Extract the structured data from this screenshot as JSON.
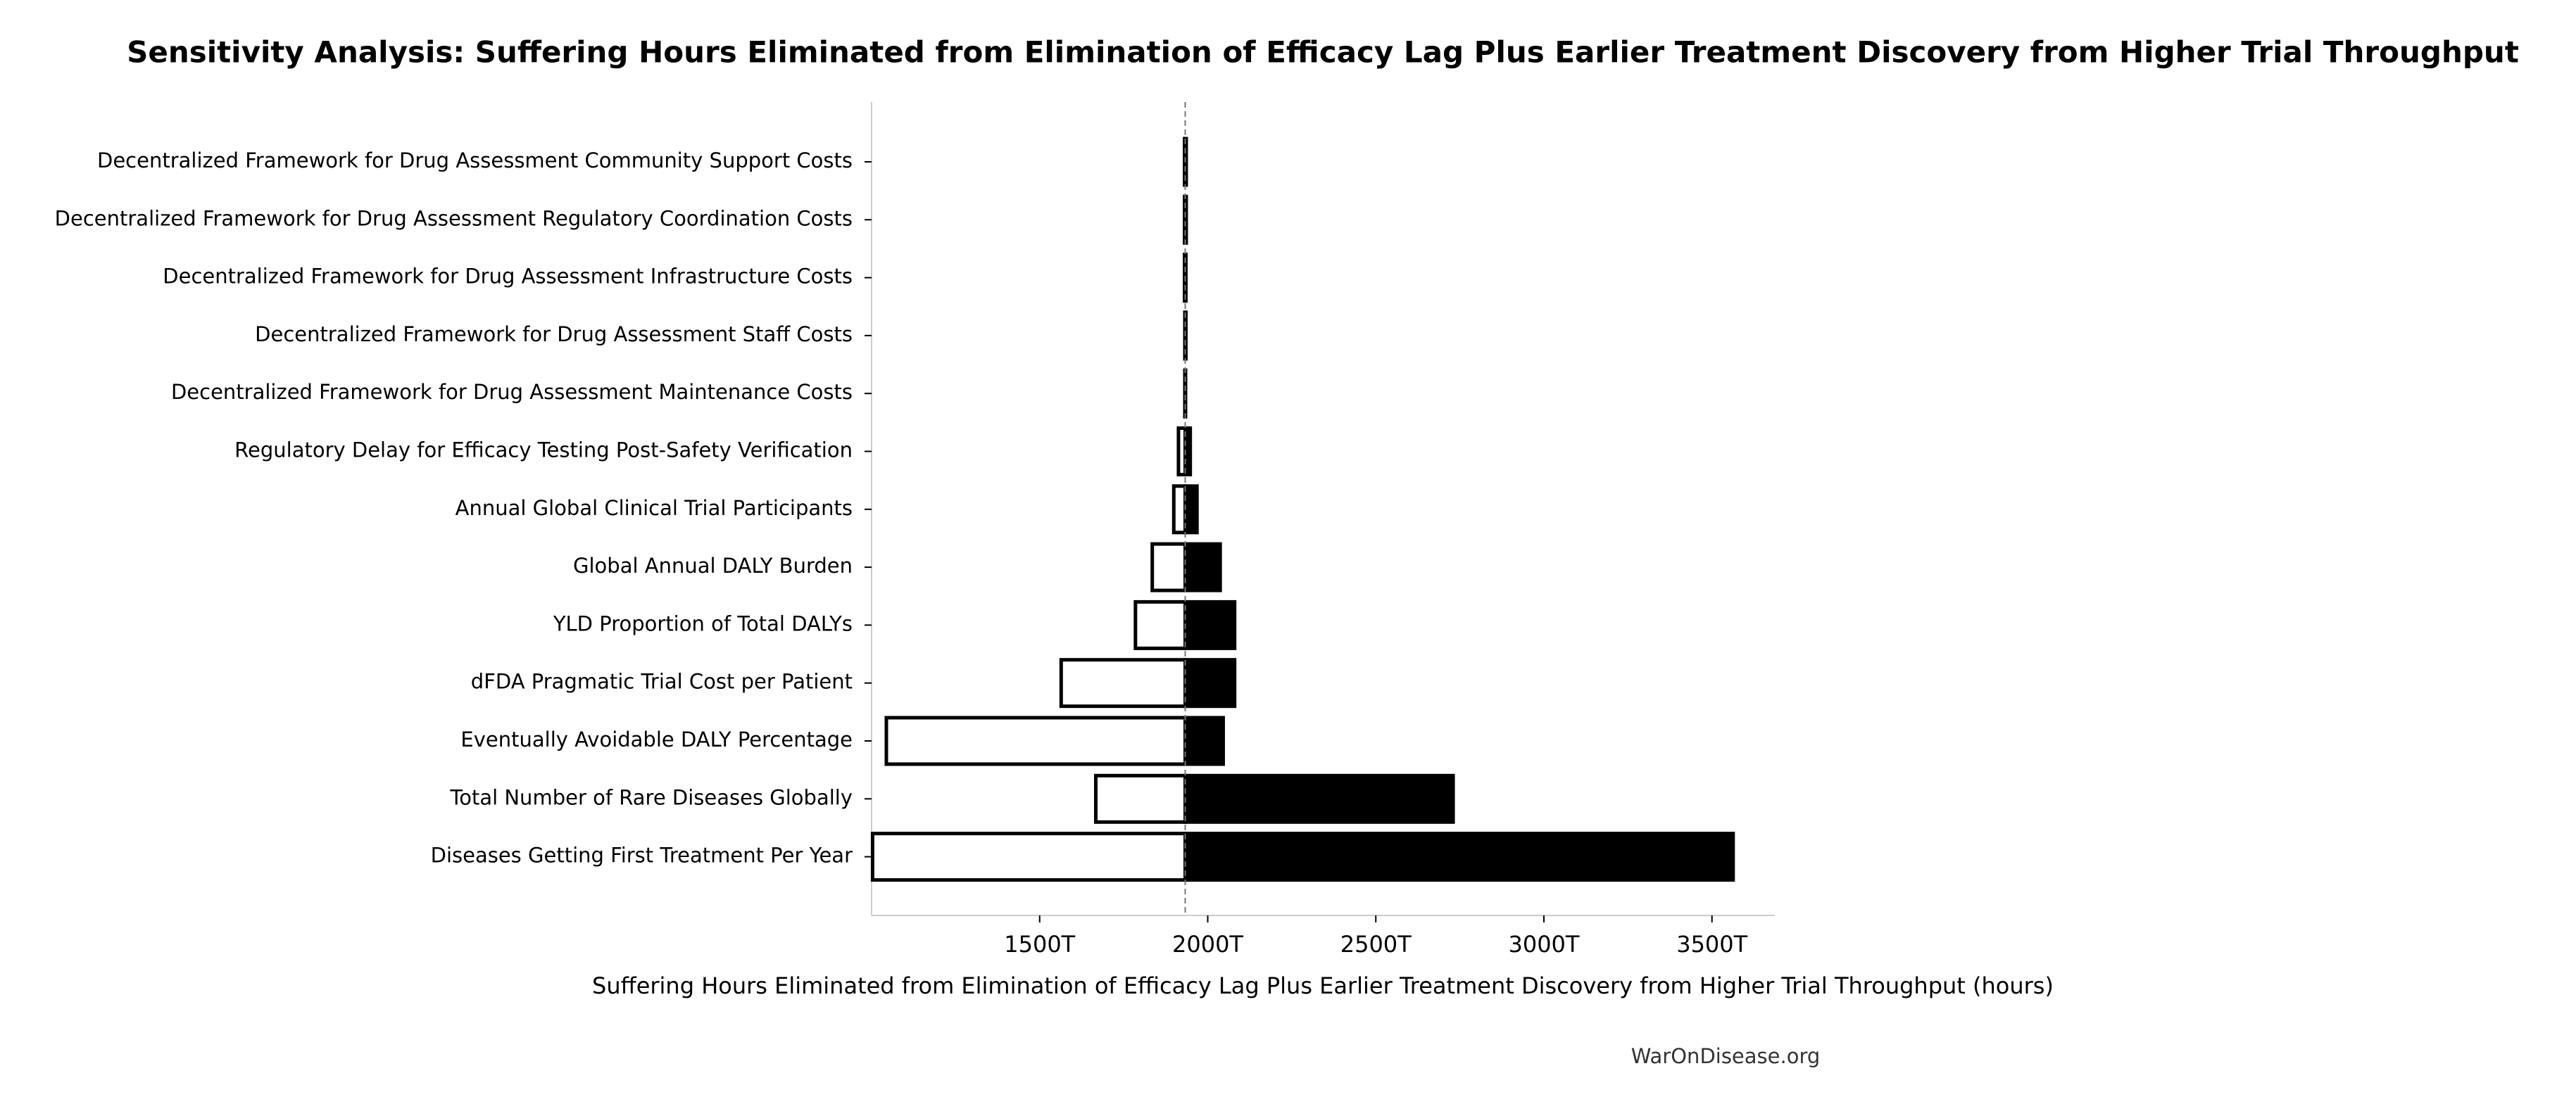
{
  "chart_data": {
    "type": "tornado",
    "title": "Sensitivity Analysis: Suffering Hours Eliminated from Elimination of Efficacy Lag Plus Earlier Treatment Discovery from Higher Trial Throughput",
    "x_label": "Suffering Hours Eliminated from Elimination of Efficacy Lag Plus Earlier Treatment Discovery from Higher Trial Throughput (hours)",
    "footer": "WarOnDisease.org",
    "categories": [
      "Decentralized Framework for Drug Assessment Community Support Costs",
      "Decentralized Framework for Drug Assessment Regulatory Coordination Costs",
      "Decentralized Framework for Drug Assessment Infrastructure Costs",
      "Decentralized Framework for Drug Assessment Staff Costs",
      "Decentralized Framework for Drug Assessment Maintenance Costs",
      "Regulatory Delay for Efficacy Testing Post-Safety Verification",
      "Annual Global Clinical Trial Participants",
      "Global Annual DALY Burden",
      "YLD Proportion of Total DALYs",
      "dFDA Pragmatic Trial Cost per Patient",
      "Eventually Avoidable DALY Percentage",
      "Total Number of Rare Diseases Globally",
      "Diseases Getting First Treatment Per Year"
    ],
    "baseline": 1933,
    "series": [
      {
        "color": "#ffffff",
        "values": [
          1931,
          1931,
          1931,
          1932,
          1932,
          1913,
          1899,
          1835,
          1785,
          1564,
          1044,
          1667,
          1003
        ]
      },
      {
        "color": "#000000",
        "values": [
          1936,
          1936,
          1935,
          1935,
          1934,
          1948,
          1968,
          2037,
          2080,
          2080,
          2046,
          2730,
          3563
        ]
      }
    ],
    "xlim": [
      1000,
      3687
    ],
    "xticks": [
      {
        "value": 1500,
        "label": "1500T"
      },
      {
        "value": 2000,
        "label": "2000T"
      },
      {
        "value": 2500,
        "label": "2500T"
      },
      {
        "value": 3000,
        "label": "3000T"
      },
      {
        "value": 3500,
        "label": "3500T"
      }
    ]
  }
}
